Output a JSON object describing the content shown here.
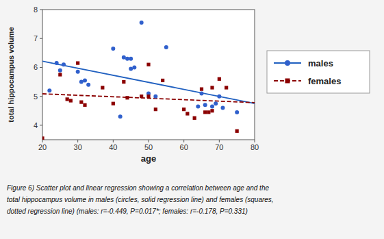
{
  "chart_data": {
    "type": "scatter",
    "x_label": "age",
    "y_label": "total hippocampus volume",
    "xlim": [
      20,
      80
    ],
    "ylim": [
      3.5,
      8.0
    ],
    "xticks": [
      20,
      30,
      40,
      50,
      60,
      70,
      80
    ],
    "yticks": [
      4,
      5,
      6,
      7,
      8
    ],
    "grid": false,
    "legend": "upper right",
    "series": [
      {
        "name": "males",
        "color": "#3060cc",
        "line_color": "#2060c0",
        "marker": "circle",
        "line_style": "solid",
        "x": [
          22,
          24,
          25,
          26,
          30,
          31,
          32,
          33,
          40,
          42,
          43,
          44,
          45,
          45,
          46,
          48,
          50,
          52,
          55,
          64,
          65,
          66,
          68,
          69,
          70,
          71,
          75
        ],
        "values": [
          5.2,
          6.15,
          5.9,
          6.1,
          5.85,
          5.5,
          5.55,
          5.4,
          6.65,
          4.3,
          6.35,
          6.3,
          6.3,
          5.95,
          6.0,
          7.55,
          5.1,
          5.0,
          6.7,
          4.65,
          5.1,
          4.7,
          4.65,
          4.75,
          5.0,
          4.6,
          4.45
        ],
        "fit_x": [
          20,
          80
        ],
        "fit_values": [
          6.215,
          4.754
        ]
      },
      {
        "name": "females",
        "color": "#8b0000",
        "line_color": "#8b0000",
        "marker": "square",
        "line_style": "dashed",
        "x": [
          20,
          25,
          27,
          28,
          30,
          31,
          32,
          37,
          40,
          43,
          44,
          48,
          50,
          50,
          52,
          54,
          60,
          61,
          63,
          65,
          66,
          67,
          68,
          68,
          70,
          72,
          75
        ],
        "values": [
          3.55,
          5.75,
          4.9,
          4.85,
          6.15,
          4.8,
          4.7,
          5.3,
          4.75,
          5.5,
          4.95,
          5.0,
          6.1,
          5.0,
          4.55,
          5.55,
          4.55,
          4.4,
          4.25,
          5.25,
          4.45,
          4.45,
          5.3,
          4.5,
          5.6,
          5.3,
          3.8
        ],
        "fit_x": [
          20,
          80
        ],
        "fit_values": [
          5.087,
          4.782
        ]
      }
    ],
    "caption": [
      "Figure 6) Scatter plot and linear regression showing a correlation between age and the",
      "total hippocampus volume in males (circles, solid regression line) and females (squares,",
      "dotted regression line) (males: r=-0.449, P=0.017*; females: r=-0.178, P=0.331)"
    ]
  }
}
